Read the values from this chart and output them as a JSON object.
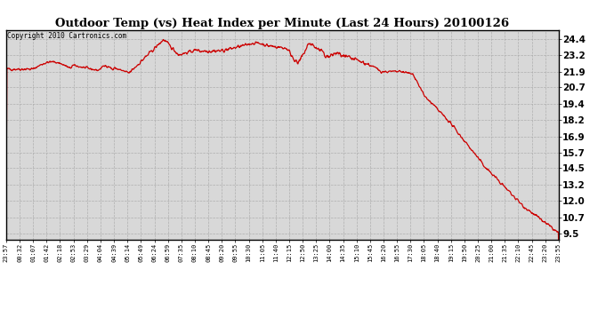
{
  "title": "Outdoor Temp (vs) Heat Index per Minute (Last 24 Hours) 20100126",
  "copyright_text": "Copyright 2010 Cartronics.com",
  "line_color": "#cc0000",
  "background_color": "#ffffff",
  "plot_bg_color": "#d8d8d8",
  "grid_color": "#aaaaaa",
  "yticks": [
    9.5,
    10.7,
    12.0,
    13.2,
    14.5,
    15.7,
    16.9,
    18.2,
    19.4,
    20.7,
    21.9,
    23.2,
    24.4
  ],
  "ylim": [
    9.0,
    25.1
  ],
  "xtick_labels": [
    "23:57",
    "00:32",
    "01:07",
    "01:42",
    "02:18",
    "02:53",
    "03:29",
    "04:04",
    "04:39",
    "05:14",
    "05:49",
    "06:24",
    "06:59",
    "07:35",
    "08:10",
    "08:45",
    "09:20",
    "09:55",
    "10:30",
    "11:05",
    "11:40",
    "12:15",
    "12:50",
    "13:25",
    "14:00",
    "14:35",
    "15:10",
    "15:45",
    "16:20",
    "16:55",
    "17:30",
    "18:05",
    "18:40",
    "19:15",
    "19:50",
    "20:25",
    "21:00",
    "21:35",
    "22:10",
    "22:45",
    "23:20",
    "23:55"
  ]
}
